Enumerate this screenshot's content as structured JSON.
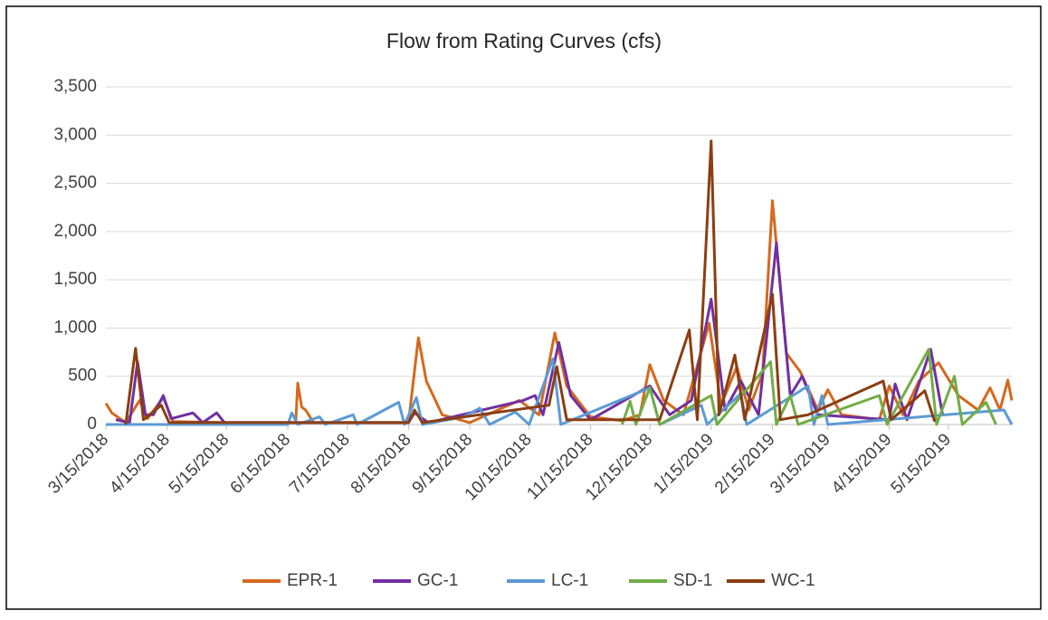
{
  "chart_data": {
    "type": "line",
    "title": "Flow from Rating Curves (cfs)",
    "xlim": [
      "3/15/2018",
      "6/16/2019"
    ],
    "xticks": [
      "3/15/2018",
      "4/15/2018",
      "5/15/2018",
      "6/15/2018",
      "7/15/2018",
      "8/15/2018",
      "9/15/2018",
      "10/15/2018",
      "11/15/2018",
      "12/15/2018",
      "1/15/2019",
      "2/15/2019",
      "3/15/2019",
      "4/15/2019",
      "5/15/2019"
    ],
    "ylim": [
      0,
      3500
    ],
    "yticks": [
      0,
      500,
      {
        "value": 1000,
        "label": "1,000"
      },
      {
        "value": 1500,
        "label": "1,500"
      },
      {
        "value": 2000,
        "label": "2,000"
      },
      {
        "value": 2500,
        "label": "2,500"
      },
      {
        "value": 3000,
        "label": "3,000"
      },
      {
        "value": 3500,
        "label": "3,500"
      }
    ],
    "grid": true,
    "legend": "bottom",
    "series": [
      {
        "name": "EPR-1",
        "color": "#d4691f",
        "x": [
          "3/15/2018",
          "3/18/2018",
          "3/25/2018",
          "4/1/2018",
          "4/5/2018",
          "4/13/2018",
          "4/18/2018",
          "5/15/2018",
          "6/19/2018",
          "6/20/2018",
          "6/22/2018",
          "6/24/2018",
          "6/28/2018",
          "8/15/2018",
          "8/20/2018",
          "8/24/2018",
          "9/1/2018",
          "9/15/2018",
          "10/10/2018",
          "10/20/2018",
          "10/28/2018",
          "11/3/2018",
          "11/15/2018",
          "12/1/2018",
          "12/10/2018",
          "12/15/2018",
          "12/22/2018",
          "1/1/2019",
          "1/14/2019",
          "1/20/2019",
          "1/28/2019",
          "2/3/2019",
          "2/10/2019",
          "2/15/2019",
          "2/22/2019",
          "3/1/2019",
          "3/10/2019",
          "3/15/2019",
          "3/22/2019",
          "4/10/2019",
          "4/15/2019",
          "4/22/2019",
          "4/30/2019",
          "5/10/2019",
          "5/20/2019",
          "5/30/2019",
          "6/5/2019",
          "6/10/2019",
          "6/14/2019",
          "6/16/2019"
        ],
        "values": [
          220,
          120,
          20,
          250,
          60,
          280,
          30,
          20,
          20,
          430,
          180,
          150,
          20,
          20,
          900,
          450,
          100,
          20,
          250,
          100,
          950,
          400,
          80,
          40,
          100,
          620,
          250,
          100,
          1050,
          200,
          600,
          150,
          530,
          2320,
          740,
          550,
          150,
          360,
          100,
          50,
          400,
          100,
          450,
          640,
          300,
          150,
          380,
          150,
          460,
          250
        ]
      },
      {
        "name": "GC-1",
        "color": "#7030a0",
        "x": [
          "3/20/2018",
          "3/27/2018",
          "3/31/2018",
          "4/4/2018",
          "4/8/2018",
          "4/13/2018",
          "4/17/2018",
          "4/28/2018",
          "5/3/2018",
          "5/10/2018",
          "5/14/2018",
          "8/15/2018",
          "8/18/2018",
          "8/25/2018",
          "10/12/2018",
          "10/18/2018",
          "10/22/2018",
          "10/30/2018",
          "11/5/2018",
          "11/15/2018",
          "12/15/2018",
          "12/25/2018",
          "1/5/2019",
          "1/15/2019",
          "1/22/2019",
          "1/30/2019",
          "2/8/2019",
          "2/17/2019",
          "2/24/2019",
          "3/2/2019",
          "3/10/2019",
          "4/15/2019",
          "4/18/2019",
          "4/24/2019",
          "5/6/2019",
          "5/12/2019"
        ],
        "values": [
          50,
          20,
          650,
          100,
          100,
          300,
          60,
          120,
          20,
          120,
          20,
          20,
          120,
          20,
          250,
          300,
          100,
          850,
          300,
          50,
          400,
          100,
          250,
          1300,
          150,
          450,
          100,
          1880,
          300,
          500,
          100,
          50,
          420,
          50,
          780,
          100
        ]
      },
      {
        "name": "LC-1",
        "color": "#5b9bd5",
        "x": [
          "3/15/2018",
          "6/15/2018",
          "6/17/2018",
          "6/20/2018",
          "7/1/2018",
          "7/4/2018",
          "7/18/2018",
          "7/20/2018",
          "8/10/2018",
          "8/13/2018",
          "8/19/2018",
          "8/22/2018",
          "9/12/2018",
          "9/20/2018",
          "9/25/2018",
          "10/8/2018",
          "10/15/2018",
          "10/27/2018",
          "10/31/2018",
          "12/15/2018",
          "12/20/2018",
          "1/10/2019",
          "1/13/2019",
          "1/30/2019",
          "2/2/2019",
          "3/5/2019",
          "3/8/2019",
          "3/12/2019",
          "3/15/2019",
          "6/12/2019",
          "6/16/2019"
        ],
        "values": [
          0,
          0,
          120,
          0,
          80,
          0,
          100,
          0,
          230,
          0,
          280,
          0,
          80,
          170,
          0,
          130,
          0,
          680,
          0,
          380,
          0,
          200,
          0,
          320,
          0,
          400,
          0,
          300,
          0,
          150,
          0
        ]
      },
      {
        "name": "SD-1",
        "color": "#70ad47",
        "x": [
          "12/1/2018",
          "12/5/2018",
          "12/8/2018",
          "12/15/2018",
          "12/20/2018",
          "1/15/2019",
          "1/18/2019",
          "2/14/2019",
          "2/17/2019",
          "2/24/2019",
          "2/28/2019",
          "4/10/2019",
          "4/14/2019",
          "5/5/2019",
          "5/9/2019",
          "5/18/2019",
          "5/22/2019",
          "6/3/2019",
          "6/8/2019"
        ],
        "values": [
          0,
          240,
          0,
          380,
          0,
          300,
          0,
          650,
          0,
          300,
          0,
          300,
          0,
          780,
          0,
          500,
          0,
          230,
          0
        ]
      },
      {
        "name": "WC-1",
        "color": "#8b3e12",
        "x": [
          "3/25/2018",
          "3/30/2018",
          "4/3/2018",
          "4/12/2018",
          "4/16/2018",
          "8/15/2018",
          "8/18/2018",
          "8/22/2018",
          "10/25/2018",
          "10/29/2018",
          "11/3/2018",
          "12/20/2018",
          "1/4/2019",
          "1/8/2019",
          "1/15/2019",
          "1/19/2019",
          "1/27/2019",
          "2/1/2019",
          "2/15/2019",
          "2/19/2019",
          "3/5/2019",
          "4/12/2019",
          "4/16/2019",
          "5/3/2019",
          "5/8/2019"
        ],
        "values": [
          0,
          790,
          50,
          200,
          20,
          20,
          150,
          20,
          200,
          600,
          50,
          50,
          980,
          50,
          2940,
          100,
          720,
          50,
          1350,
          50,
          100,
          450,
          50,
          350,
          30
        ]
      }
    ]
  }
}
